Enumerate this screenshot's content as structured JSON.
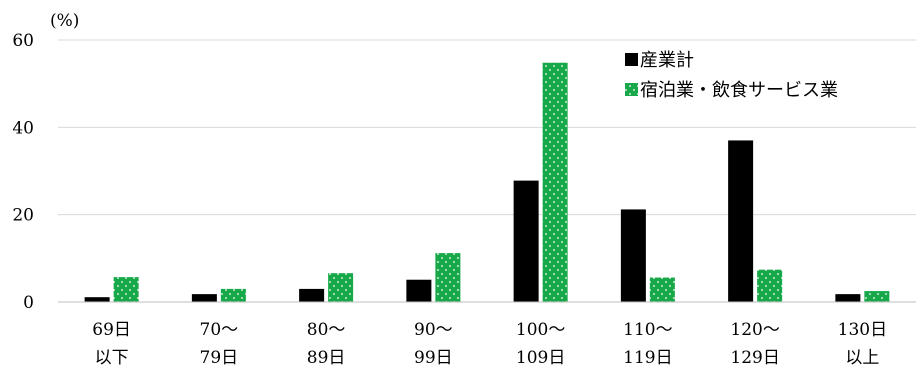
{
  "chart_data": {
    "type": "bar",
    "unit_label": "(%)",
    "ylim": [
      0,
      60
    ],
    "yticks": [
      "0",
      "20",
      "40",
      "60"
    ],
    "grid": true,
    "legend_position": "top-right",
    "categories": [
      [
        "69日",
        "以下"
      ],
      [
        "70～",
        "79日"
      ],
      [
        "80～",
        "89日"
      ],
      [
        "90～",
        "99日"
      ],
      [
        "100～",
        "109日"
      ],
      [
        "110～",
        "119日"
      ],
      [
        "120～",
        "129日"
      ],
      [
        "130日",
        "以上"
      ]
    ],
    "series": [
      {
        "name": "産業計",
        "color": "#000000",
        "pattern": "solid",
        "values": [
          1.1,
          1.8,
          3.0,
          5.1,
          27.8,
          21.2,
          37.0,
          1.8
        ]
      },
      {
        "name": "宿泊業・飲食サービス業",
        "color": "#17a84a",
        "pattern": "dots",
        "values": [
          5.7,
          3.0,
          6.6,
          11.2,
          54.8,
          5.6,
          7.4,
          2.5
        ]
      }
    ]
  }
}
